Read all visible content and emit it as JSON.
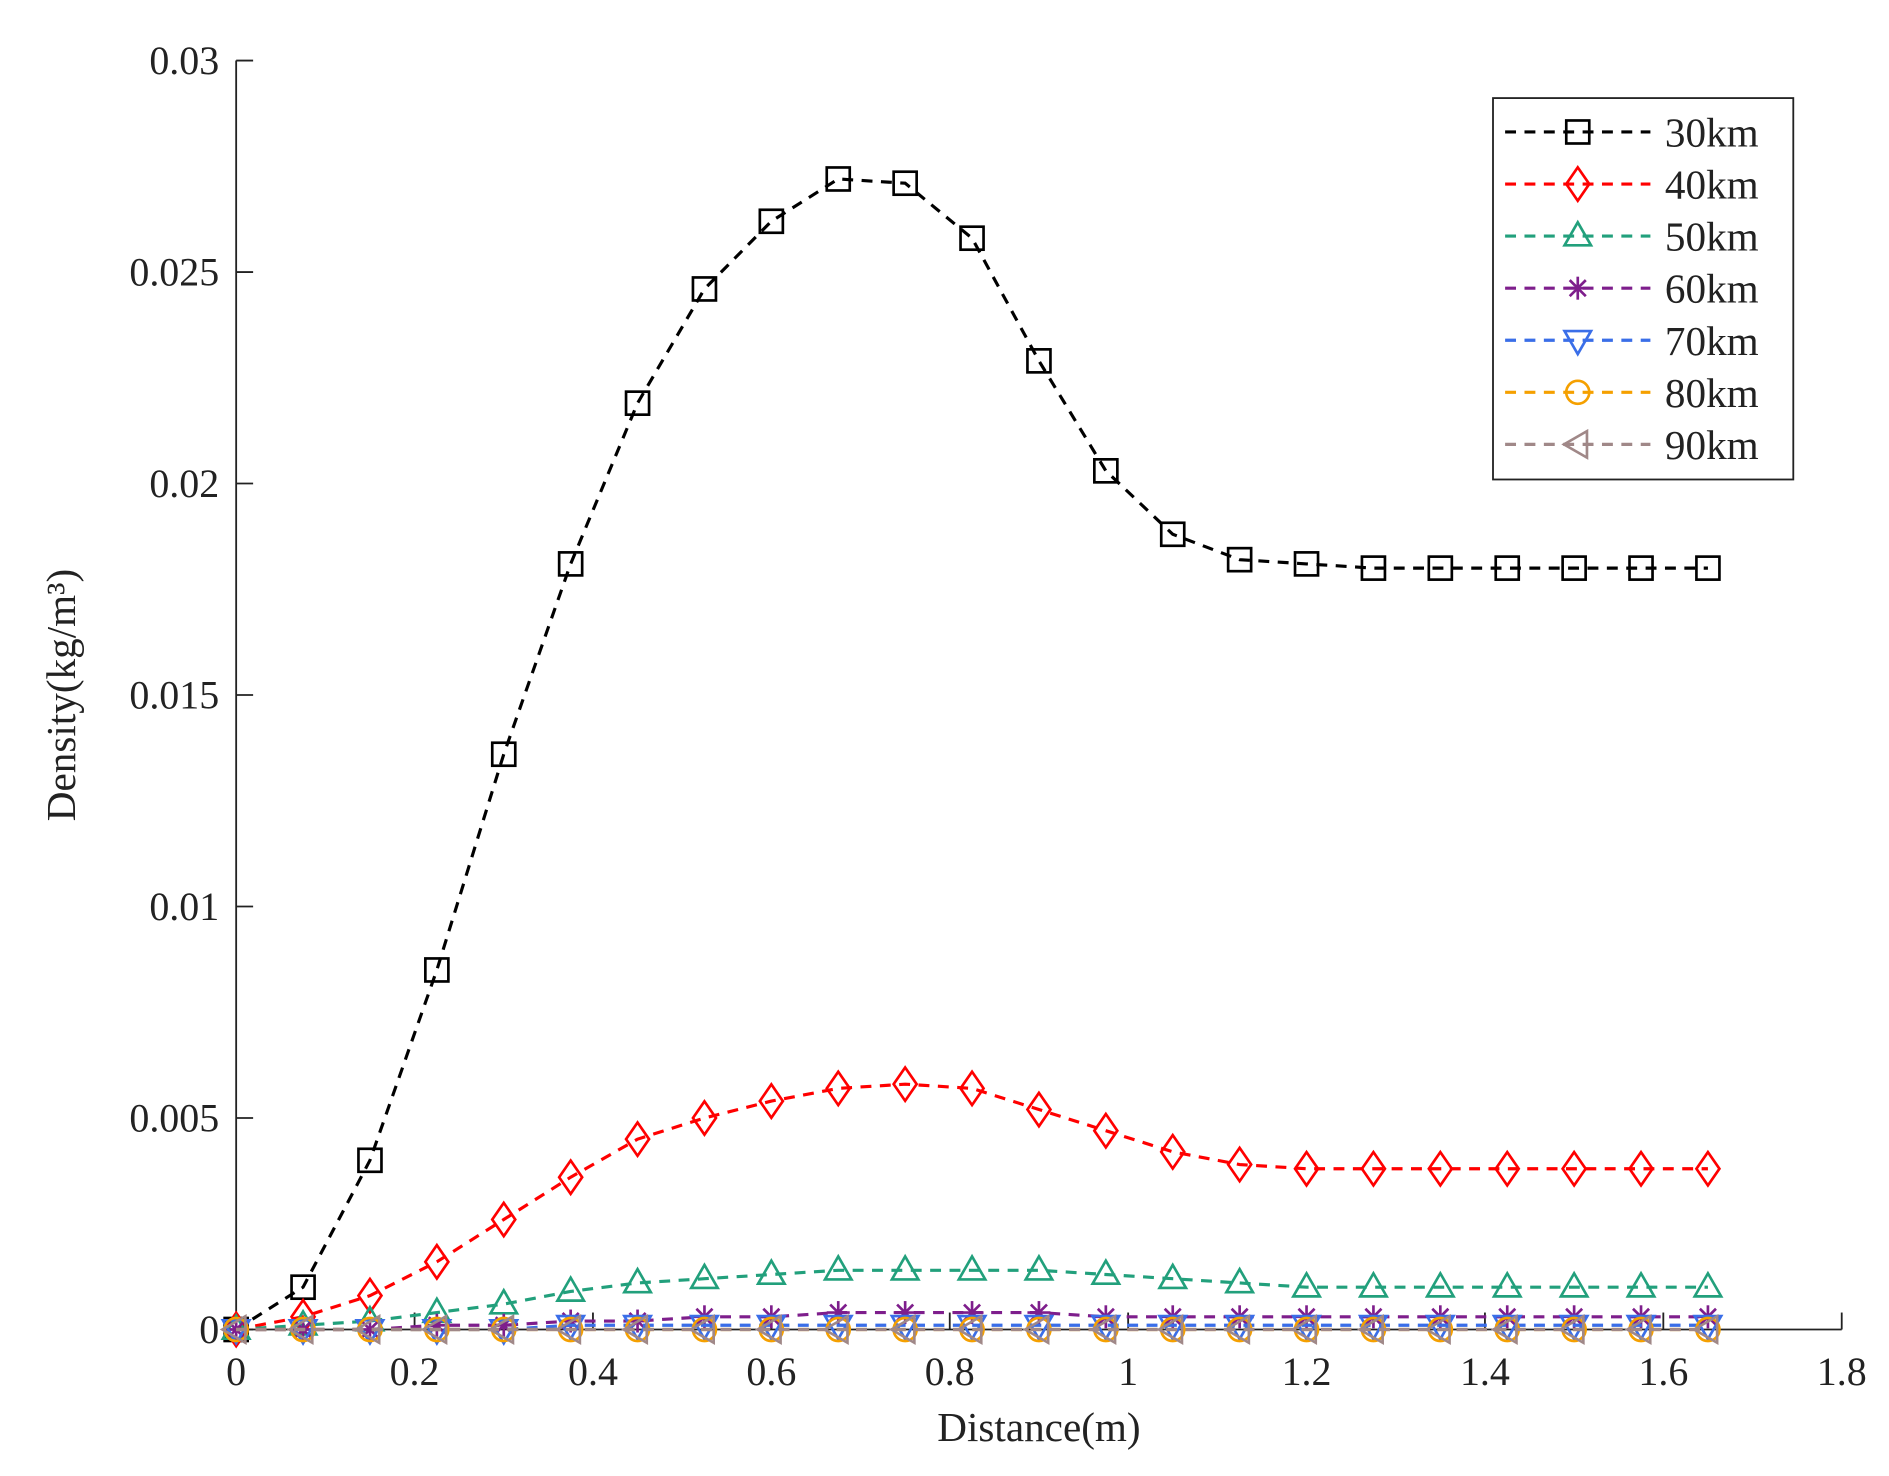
{
  "chart_data": {
    "type": "line",
    "xlabel": "Distance(m)",
    "ylabel": "Density(kg/m³)",
    "x": [
      0,
      0.075,
      0.15,
      0.225,
      0.3,
      0.375,
      0.45,
      0.525,
      0.6,
      0.675,
      0.75,
      0.825,
      0.9,
      0.975,
      1.05,
      1.125,
      1.2,
      1.275,
      1.35,
      1.425,
      1.5,
      1.575,
      1.65
    ],
    "series": [
      {
        "name": "30km",
        "color": "#000000",
        "marker": "square",
        "values": [
          0,
          0.001,
          0.004,
          0.0085,
          0.0136,
          0.0181,
          0.0219,
          0.0246,
          0.0262,
          0.0272,
          0.0271,
          0.0258,
          0.0229,
          0.0203,
          0.0188,
          0.0182,
          0.0181,
          0.018,
          0.018,
          0.018,
          0.018,
          0.018,
          0.018
        ]
      },
      {
        "name": "40km",
        "color": "#ff0000",
        "marker": "diamond",
        "values": [
          0,
          0.0003,
          0.0008,
          0.0016,
          0.0026,
          0.0036,
          0.0045,
          0.005,
          0.0054,
          0.0057,
          0.0058,
          0.0057,
          0.0052,
          0.0047,
          0.0042,
          0.0039,
          0.0038,
          0.0038,
          0.0038,
          0.0038,
          0.0038,
          0.0038,
          0.0038
        ]
      },
      {
        "name": "50km",
        "color": "#22a07c",
        "marker": "triangle-up",
        "values": [
          0,
          0.0001,
          0.0002,
          0.0004,
          0.0006,
          0.0009,
          0.0011,
          0.0012,
          0.0013,
          0.0014,
          0.0014,
          0.0014,
          0.0014,
          0.0013,
          0.0012,
          0.0011,
          0.001,
          0.001,
          0.001,
          0.001,
          0.001,
          0.001,
          0.001
        ]
      },
      {
        "name": "60km",
        "color": "#7e1e8c",
        "marker": "asterisk",
        "values": [
          0,
          0,
          0,
          0.0001,
          0.0001,
          0.0002,
          0.0002,
          0.0003,
          0.0003,
          0.0004,
          0.0004,
          0.0004,
          0.0004,
          0.0003,
          0.0003,
          0.0003,
          0.0003,
          0.0003,
          0.0003,
          0.0003,
          0.0003,
          0.0003,
          0.0003
        ]
      },
      {
        "name": "70km",
        "color": "#3a6ee8",
        "marker": "triangle-down",
        "values": [
          0,
          0,
          0,
          0,
          0,
          0.0001,
          0.0001,
          0.0001,
          0.0001,
          0.0001,
          0.0001,
          0.0001,
          0.0001,
          0.0001,
          0.0001,
          0.0001,
          0.0001,
          0.0001,
          0.0001,
          0.0001,
          0.0001,
          0.0001,
          0.0001
        ]
      },
      {
        "name": "80km",
        "color": "#f5a000",
        "marker": "circle",
        "values": [
          0,
          0,
          0,
          0,
          0,
          0,
          0,
          0,
          0,
          0,
          0,
          0,
          0,
          0,
          0,
          0,
          0,
          0,
          0,
          0,
          0,
          0,
          0
        ]
      },
      {
        "name": "90km",
        "color": "#a08888",
        "marker": "triangle-left",
        "values": [
          0,
          0,
          0,
          0,
          0,
          0,
          0,
          0,
          0,
          0,
          0,
          0,
          0,
          0,
          0,
          0,
          0,
          0,
          0,
          0,
          0,
          0,
          0
        ]
      }
    ],
    "xlim": [
      0,
      1.8
    ],
    "xticks": [
      0,
      0.2,
      0.4,
      0.6,
      0.8,
      1,
      1.2,
      1.4,
      1.6,
      1.8
    ],
    "ylim": [
      0,
      0.03
    ],
    "yticks": [
      0,
      0.005,
      0.01,
      0.015,
      0.02,
      0.025,
      0.03
    ],
    "legend": "upper right",
    "line_style": "dashed",
    "grid": false
  }
}
